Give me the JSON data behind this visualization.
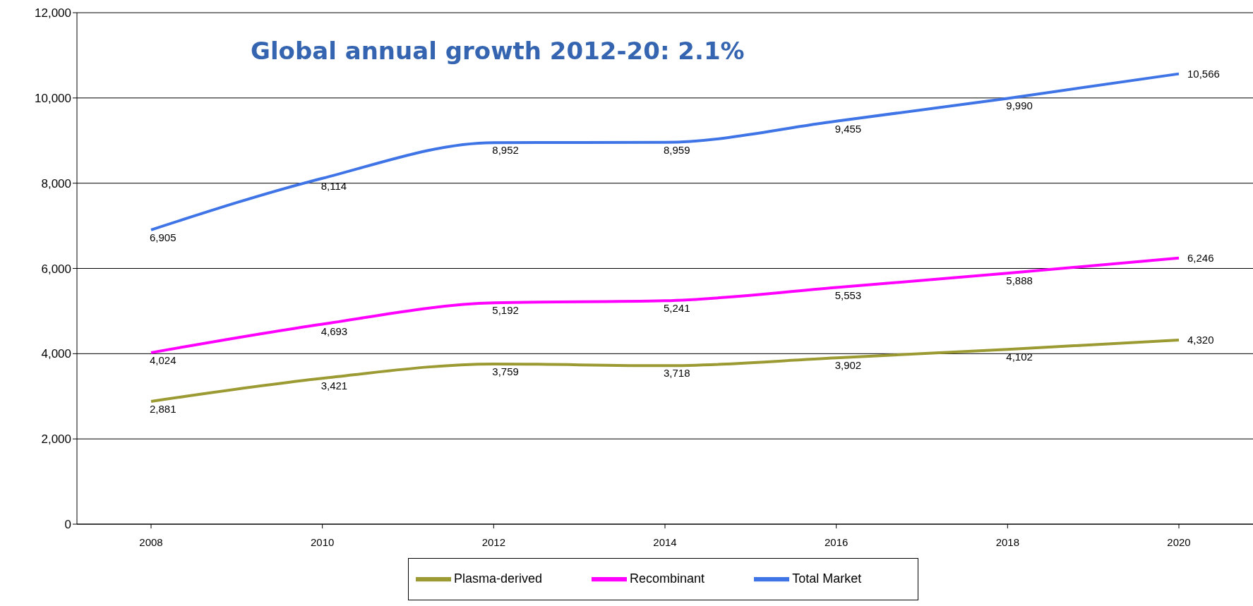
{
  "chart_data": {
    "type": "line",
    "title": "Global annual growth 2012-20: 2.1%",
    "categories": [
      "2008",
      "2010",
      "2012",
      "2014",
      "2016",
      "2018",
      "2020"
    ],
    "series": [
      {
        "name": "Plasma-derived",
        "color": "#9c9a33",
        "values": [
          2881,
          3421,
          3759,
          3718,
          3902,
          4102,
          4320
        ],
        "value_labels": [
          "2,881",
          "3,421",
          "3,759",
          "3,718",
          "3,902",
          "4,102",
          "4,320"
        ]
      },
      {
        "name": "Recombinant",
        "color": "#ff00ff",
        "values": [
          4024,
          4693,
          5192,
          5241,
          5553,
          5888,
          6246
        ],
        "value_labels": [
          "4,024",
          "4,693",
          "5,192",
          "5,241",
          "5,553",
          "5,888",
          "6,246"
        ]
      },
      {
        "name": "Total Market",
        "color": "#3f74e6",
        "values": [
          6905,
          8114,
          8952,
          8959,
          9455,
          9990,
          10566
        ],
        "value_labels": [
          "6,905",
          "8,114",
          "8,952",
          "8,959",
          "9,455",
          "9,990",
          "10,566"
        ]
      }
    ],
    "ylim": [
      0,
      12000
    ],
    "yticks": [
      {
        "value": 0,
        "label": "0"
      },
      {
        "value": 2000,
        "label": "2,000"
      },
      {
        "value": 4000,
        "label": "4,000"
      },
      {
        "value": 6000,
        "label": "6,000"
      },
      {
        "value": 8000,
        "label": "8,000"
      },
      {
        "value": 10000,
        "label": "10,000"
      },
      {
        "value": 12000,
        "label": "12,000"
      }
    ],
    "grid": "y",
    "legend": "bottom",
    "marker": "none",
    "line_style": "solid"
  }
}
